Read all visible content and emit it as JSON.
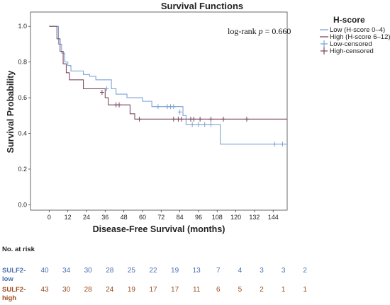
{
  "chart_data": {
    "type": "line",
    "title": "Survival Functions",
    "xlabel": "Disease-Free Survival (months)",
    "ylabel": "Survival Probability",
    "xlim": [
      -12,
      153
    ],
    "ylim": [
      -0.03,
      1.08
    ],
    "xticks": [
      "0",
      "12",
      "24",
      "36",
      "48",
      "60",
      "72",
      "84",
      "96",
      "108",
      "120",
      "132",
      "144"
    ],
    "yticks": [
      "0.0",
      "0.2",
      "0.4",
      "0.6",
      "0.8",
      "1.0"
    ],
    "annotation_prefix": "log-rank ",
    "annotation_p": "p",
    "annotation_value": " = 0.660",
    "legend": {
      "title": "H-score",
      "position": "right",
      "entries": [
        "Low (H-score 0–4)",
        "High (H-score 6–12)",
        "Low-censored",
        "High-censored"
      ]
    },
    "colors": {
      "low": "#7ba3d6",
      "high": "#7a4a62"
    },
    "series": [
      {
        "name": "Low (H-score 0–4)",
        "steps": [
          [
            0,
            1.0
          ],
          [
            6,
            0.9
          ],
          [
            8,
            0.85
          ],
          [
            10,
            0.8
          ],
          [
            12,
            0.78
          ],
          [
            14,
            0.75
          ],
          [
            22,
            0.73
          ],
          [
            26,
            0.72
          ],
          [
            30,
            0.7
          ],
          [
            40,
            0.65
          ],
          [
            43,
            0.62
          ],
          [
            50,
            0.6
          ],
          [
            60,
            0.58
          ],
          [
            66,
            0.55
          ],
          [
            86,
            0.5
          ],
          [
            88,
            0.45
          ],
          [
            110,
            0.34
          ],
          [
            153,
            0.34
          ]
        ],
        "censored": [
          [
            37,
            0.65
          ],
          [
            70,
            0.55
          ],
          [
            76,
            0.55
          ],
          [
            78,
            0.55
          ],
          [
            80,
            0.55
          ],
          [
            84,
            0.52
          ],
          [
            92,
            0.45
          ],
          [
            96,
            0.45
          ],
          [
            100,
            0.45
          ],
          [
            104,
            0.45
          ],
          [
            145,
            0.34
          ],
          [
            150,
            0.34
          ]
        ]
      },
      {
        "name": "High (H-score 6–12)",
        "steps": [
          [
            0,
            1.0
          ],
          [
            5,
            0.93
          ],
          [
            7,
            0.86
          ],
          [
            9,
            0.79
          ],
          [
            11,
            0.74
          ],
          [
            13,
            0.7
          ],
          [
            22,
            0.65
          ],
          [
            36,
            0.6
          ],
          [
            38,
            0.56
          ],
          [
            52,
            0.51
          ],
          [
            55,
            0.48
          ],
          [
            153,
            0.48
          ]
        ],
        "censored": [
          [
            34,
            0.63
          ],
          [
            43,
            0.56
          ],
          [
            45,
            0.56
          ],
          [
            58,
            0.48
          ],
          [
            80,
            0.48
          ],
          [
            83,
            0.48
          ],
          [
            85,
            0.48
          ],
          [
            91,
            0.48
          ],
          [
            93,
            0.48
          ],
          [
            97,
            0.48
          ],
          [
            104,
            0.48
          ],
          [
            112,
            0.48
          ],
          [
            127,
            0.48
          ]
        ]
      }
    ]
  },
  "risk_table": {
    "heading": "No. at risk",
    "groups": [
      {
        "label_line1": "SULF2-",
        "label_line2": "low",
        "color": "#4a6fae",
        "counts": [
          "40",
          "34",
          "30",
          "28",
          "25",
          "22",
          "19",
          "13",
          "7",
          "4",
          "3",
          "3",
          "2"
        ]
      },
      {
        "label_line1": "SULF2-",
        "label_line2": "high",
        "color": "#9a4a1a",
        "counts": [
          "43",
          "30",
          "28",
          "24",
          "19",
          "17",
          "17",
          "11",
          "6",
          "5",
          "2",
          "1",
          "1"
        ]
      }
    ]
  }
}
